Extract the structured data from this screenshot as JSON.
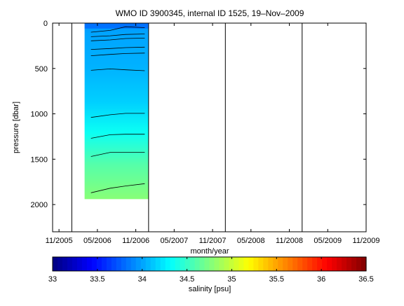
{
  "chart_data": {
    "type": "heatmap",
    "title": "WMO ID 3900345, internal ID 1525, 19–Nov–2009",
    "xlabel": "month/year",
    "ylabel": "pressure [dbar]",
    "x_ticks": [
      "11/2005",
      "05/2006",
      "11/2006",
      "05/2007",
      "11/2007",
      "05/2008",
      "11/2008",
      "05/2009",
      "11/2009"
    ],
    "y_ticks": [
      "0",
      "500",
      "1000",
      "1500",
      "2000"
    ],
    "x_range": [
      "2005-10",
      "2009-11"
    ],
    "ylim": [
      2300,
      0
    ],
    "year_lines": [
      "2006-01",
      "2007-01",
      "2008-01",
      "2009-01"
    ],
    "data_coverage": {
      "x_start": "2006-03",
      "x_end": "2007-01",
      "p_min": 0,
      "p_max": 1940
    },
    "contours": [
      {
        "points": [
          [
            2006.25,
            100
          ],
          [
            2006.5,
            80
          ],
          [
            2006.7,
            40
          ],
          [
            2006.95,
            50
          ]
        ]
      },
      {
        "points": [
          [
            2006.25,
            150
          ],
          [
            2006.5,
            140
          ],
          [
            2006.7,
            125
          ],
          [
            2006.95,
            120
          ]
        ]
      },
      {
        "points": [
          [
            2006.25,
            195
          ],
          [
            2006.5,
            185
          ],
          [
            2006.7,
            170
          ],
          [
            2006.95,
            165
          ]
        ]
      },
      {
        "points": [
          [
            2006.25,
            290
          ],
          [
            2006.5,
            280
          ],
          [
            2006.7,
            270
          ],
          [
            2006.95,
            265
          ]
        ]
      },
      {
        "points": [
          [
            2006.25,
            360
          ],
          [
            2006.5,
            345
          ],
          [
            2006.7,
            335
          ],
          [
            2006.95,
            330
          ]
        ]
      },
      {
        "points": [
          [
            2006.25,
            520
          ],
          [
            2006.5,
            505
          ],
          [
            2006.7,
            515
          ],
          [
            2006.95,
            525
          ]
        ]
      },
      {
        "points": [
          [
            2006.25,
            1040
          ],
          [
            2006.5,
            1010
          ],
          [
            2006.7,
            995
          ],
          [
            2006.95,
            995
          ]
        ]
      },
      {
        "points": [
          [
            2006.25,
            1270
          ],
          [
            2006.5,
            1230
          ],
          [
            2006.7,
            1225
          ],
          [
            2006.95,
            1225
          ]
        ]
      },
      {
        "points": [
          [
            2006.25,
            1470
          ],
          [
            2006.5,
            1425
          ],
          [
            2006.7,
            1425
          ],
          [
            2006.95,
            1425
          ]
        ]
      },
      {
        "points": [
          [
            2006.25,
            1870
          ],
          [
            2006.5,
            1820
          ],
          [
            2006.7,
            1795
          ],
          [
            2006.95,
            1770
          ]
        ]
      }
    ],
    "colorbar": {
      "label": "salinity [psu]",
      "ticks": [
        "33",
        "33.5",
        "34",
        "34.5",
        "35",
        "35.5",
        "36",
        "36.5"
      ],
      "range": [
        33,
        36.5
      ],
      "colormap": "jet"
    }
  }
}
